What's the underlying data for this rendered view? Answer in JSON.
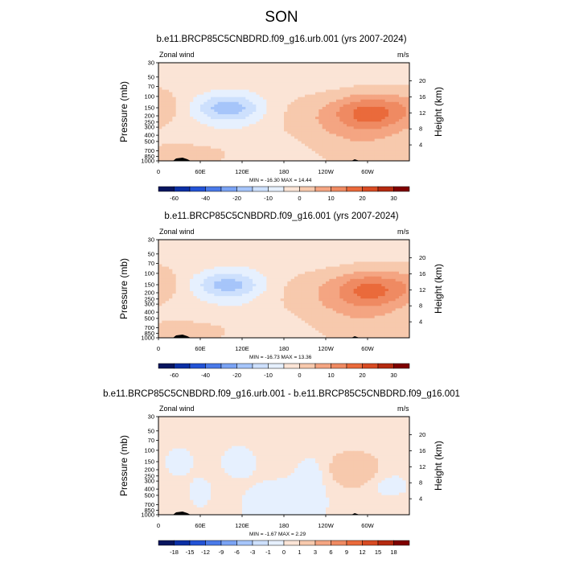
{
  "suptitle": "SON",
  "colors": {
    "neg": [
      "#08155f",
      "#0b2fa5",
      "#2353d6",
      "#4a7ae9",
      "#7aa3f4",
      "#a6c5fa",
      "#cde0fd",
      "#e6f0fe"
    ],
    "pos": [
      "#fbe4d6",
      "#f7c9ad",
      "#f4a582",
      "#ef8a62",
      "#ea6a3b",
      "#d84b23",
      "#b52a10",
      "#7f0000"
    ]
  },
  "chart_data": [
    {
      "type": "heatmap",
      "title": "b.e11.BRCP85C5CNBDRD.f09_g16.urb.001 (yrs 2007-2024)",
      "left_label": "Zonal wind",
      "right_label": "m/s",
      "ylabel": "Pressure (mb)",
      "ylabel_right": "Height (km)",
      "pressure_ticks": [
        "30",
        "50",
        "70",
        "100",
        "150",
        "200",
        "250",
        "300",
        "400",
        "500",
        "700",
        "850",
        "1000"
      ],
      "height_ticks": [
        "20",
        "16",
        "12",
        "8",
        "4"
      ],
      "lon_ticks": [
        "0",
        "60E",
        "120E",
        "180",
        "120W",
        "60W"
      ],
      "stats": "MIN = -16.30  MAX = 14.44",
      "colorbar_labels": [
        "-60",
        "-40",
        "-20",
        "-10",
        "0",
        "10",
        "20",
        "30"
      ],
      "scale": 1
    },
    {
      "type": "heatmap",
      "title": "b.e11.BRCP85C5CNBDRD.f09_g16.001 (yrs 2007-2024)",
      "left_label": "Zonal wind",
      "right_label": "m/s",
      "ylabel": "Pressure (mb)",
      "ylabel_right": "Height (km)",
      "pressure_ticks": [
        "30",
        "50",
        "70",
        "100",
        "150",
        "200",
        "250",
        "300",
        "400",
        "500",
        "700",
        "850",
        "1000"
      ],
      "height_ticks": [
        "20",
        "16",
        "12",
        "8",
        "4"
      ],
      "lon_ticks": [
        "0",
        "60E",
        "120E",
        "180",
        "120W",
        "60W"
      ],
      "stats": "MIN = -16.73  MAX = 13.36",
      "colorbar_labels": [
        "-60",
        "-40",
        "-20",
        "-10",
        "0",
        "10",
        "20",
        "30"
      ],
      "scale": 0.95
    },
    {
      "type": "heatmap",
      "title": "b.e11.BRCP85C5CNBDRD.f09_g16.urb.001 - b.e11.BRCP85C5CNBDRD.f09_g16.001",
      "left_label": "Zonal wind",
      "right_label": "m/s",
      "ylabel": "Pressure (mb)",
      "ylabel_right": "Height (km)",
      "pressure_ticks": [
        "30",
        "50",
        "70",
        "100",
        "150",
        "200",
        "250",
        "300",
        "400",
        "500",
        "700",
        "850",
        "1000"
      ],
      "height_ticks": [
        "20",
        "16",
        "12",
        "8",
        "4"
      ],
      "lon_ticks": [
        "0",
        "60E",
        "120E",
        "180",
        "120W",
        "60W"
      ],
      "stats": "MIN = -1.67  MAX = 2.29",
      "colorbar_labels": [
        "-18",
        "-15",
        "-12",
        "-9",
        "-6",
        "-3",
        "-1",
        "0",
        "1",
        "3",
        "6",
        "9",
        "12",
        "15",
        "18"
      ],
      "scale": 0.15
    }
  ]
}
